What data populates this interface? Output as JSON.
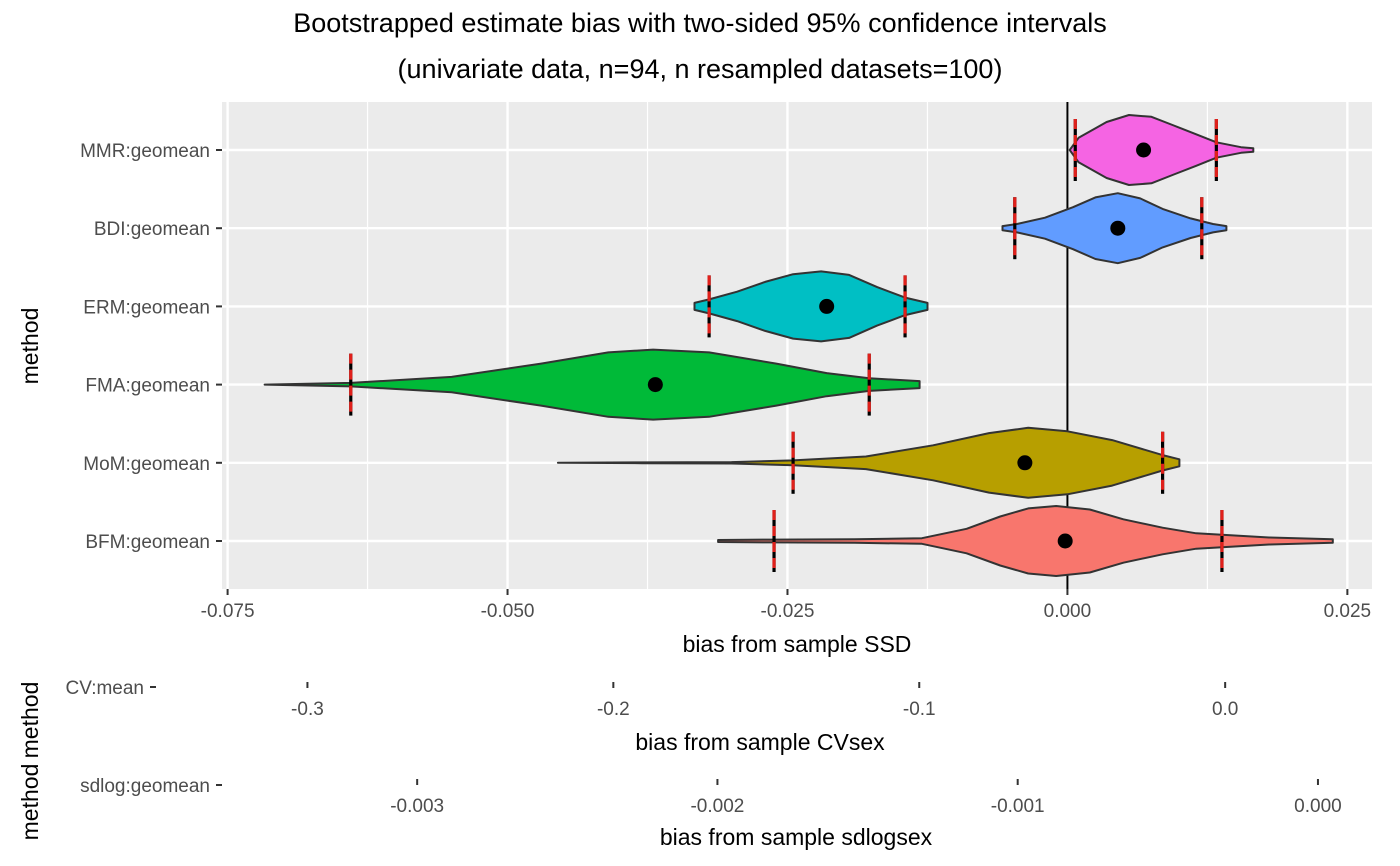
{
  "chart_data": [
    {
      "type": "violin",
      "title": "Bootstrapped estimate bias with two-sided 95% confidence intervals",
      "subtitle": "(univariate data, n=94, n resampled datasets=100)",
      "xlabel": "bias from sample SSD",
      "ylabel": "method",
      "xlim": [
        -0.0755,
        0.0272
      ],
      "xticks": [
        -0.075,
        -0.05,
        -0.025,
        0.0,
        0.025
      ],
      "xtick_labels": [
        "-0.075",
        "-0.050",
        "-0.025",
        "0.000",
        "0.025"
      ],
      "grid": true,
      "reference_line_x": 0,
      "categories": [
        "MMR:geomean",
        "BDI:geomean",
        "ERM:geomean",
        "FMA:geomean",
        "MoM:geomean",
        "BFM:geomean"
      ],
      "series": [
        {
          "category": "MMR:geomean",
          "color": "#F564E3",
          "point": 0.0068,
          "ci": [
            0.0007,
            0.0133
          ],
          "range": [
            0.0002,
            0.0166
          ],
          "density": [
            [
              0.0002,
              0.0
            ],
            [
              0.001,
              0.35
            ],
            [
              0.0035,
              0.8
            ],
            [
              0.0055,
              1.0
            ],
            [
              0.0075,
              0.95
            ],
            [
              0.0095,
              0.7
            ],
            [
              0.0115,
              0.45
            ],
            [
              0.0133,
              0.22
            ],
            [
              0.0155,
              0.08
            ],
            [
              0.0166,
              0.05
            ]
          ]
        },
        {
          "category": "BDI:geomean",
          "color": "#619CFF",
          "point": 0.0045,
          "ci": [
            -0.0047,
            0.012
          ],
          "range": [
            -0.0058,
            0.0142
          ],
          "density": [
            [
              -0.0058,
              0.06
            ],
            [
              -0.0045,
              0.12
            ],
            [
              -0.002,
              0.3
            ],
            [
              0.0005,
              0.6
            ],
            [
              0.0025,
              0.88
            ],
            [
              0.0045,
              1.0
            ],
            [
              0.0065,
              0.85
            ],
            [
              0.0085,
              0.55
            ],
            [
              0.011,
              0.28
            ],
            [
              0.013,
              0.12
            ],
            [
              0.0142,
              0.06
            ]
          ]
        },
        {
          "category": "ERM:geomean",
          "color": "#00BFC4",
          "point": -0.0215,
          "ci": [
            -0.032,
            -0.0145
          ],
          "range": [
            -0.0333,
            -0.0125
          ],
          "density": [
            [
              -0.0333,
              0.1
            ],
            [
              -0.032,
              0.2
            ],
            [
              -0.0295,
              0.42
            ],
            [
              -0.027,
              0.7
            ],
            [
              -0.0245,
              0.92
            ],
            [
              -0.022,
              1.0
            ],
            [
              -0.0195,
              0.9
            ],
            [
              -0.017,
              0.55
            ],
            [
              -0.0145,
              0.25
            ],
            [
              -0.0125,
              0.1
            ]
          ]
        },
        {
          "category": "FMA:geomean",
          "color": "#00BA38",
          "point": -0.0368,
          "ci": [
            -0.064,
            -0.0177
          ],
          "range": [
            -0.0717,
            -0.0132
          ],
          "density": [
            [
              -0.0717,
              0.0
            ],
            [
              -0.064,
              0.05
            ],
            [
              -0.055,
              0.22
            ],
            [
              -0.047,
              0.6
            ],
            [
              -0.041,
              0.92
            ],
            [
              -0.037,
              1.0
            ],
            [
              -0.032,
              0.92
            ],
            [
              -0.026,
              0.6
            ],
            [
              -0.0215,
              0.33
            ],
            [
              -0.0177,
              0.18
            ],
            [
              -0.0132,
              0.1
            ]
          ]
        },
        {
          "category": "MoM:geomean",
          "color": "#B79F00",
          "point": -0.0038,
          "ci": [
            -0.0245,
            0.0085
          ],
          "range": [
            -0.0455,
            0.01
          ],
          "density": [
            [
              -0.0455,
              0.0
            ],
            [
              -0.038,
              0.01
            ],
            [
              -0.03,
              0.02
            ],
            [
              -0.0245,
              0.07
            ],
            [
              -0.018,
              0.18
            ],
            [
              -0.012,
              0.5
            ],
            [
              -0.007,
              0.85
            ],
            [
              -0.0035,
              1.0
            ],
            [
              0.0,
              0.9
            ],
            [
              0.004,
              0.65
            ],
            [
              0.0085,
              0.22
            ],
            [
              0.01,
              0.1
            ]
          ]
        },
        {
          "category": "BFM:geomean",
          "color": "#F8766D",
          "point": -0.0002,
          "ci": [
            -0.0262,
            0.0138
          ],
          "range": [
            -0.0312,
            0.0237
          ],
          "density": [
            [
              -0.0312,
              0.03
            ],
            [
              -0.0262,
              0.04
            ],
            [
              -0.019,
              0.05
            ],
            [
              -0.013,
              0.08
            ],
            [
              -0.009,
              0.35
            ],
            [
              -0.006,
              0.7
            ],
            [
              -0.0035,
              0.93
            ],
            [
              -0.001,
              1.0
            ],
            [
              0.002,
              0.9
            ],
            [
              0.005,
              0.62
            ],
            [
              0.0085,
              0.38
            ],
            [
              0.0115,
              0.22
            ],
            [
              0.0138,
              0.18
            ],
            [
              0.018,
              0.1
            ],
            [
              0.0237,
              0.05
            ]
          ]
        }
      ]
    },
    {
      "type": "violin",
      "xlabel": "bias from sample CVsex",
      "ylabel": "method",
      "categories": [
        "CV:mean"
      ],
      "xlim": [
        -0.3495,
        0.048
      ],
      "xticks": [
        -0.3,
        -0.2,
        -0.1,
        0.0
      ],
      "xtick_labels": [
        "-0.3",
        "-0.2",
        "-0.1",
        "0.0"
      ],
      "series": []
    },
    {
      "type": "violin",
      "xlabel": "bias from sample sdlogsex",
      "ylabel": "method",
      "categories": [
        "sdlog:geomean"
      ],
      "xlim": [
        -0.00365,
        0.00018
      ],
      "xticks": [
        -0.003,
        -0.002,
        -0.001,
        0.0
      ],
      "xtick_labels": [
        "-0.003",
        "-0.002",
        "-0.001",
        "0.000"
      ],
      "series": []
    }
  ]
}
